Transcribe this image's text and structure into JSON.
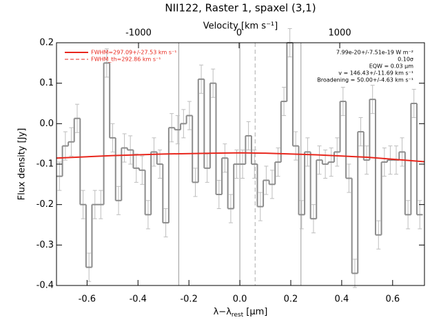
{
  "chart_data": {
    "type": "step",
    "title": "NII122, Raster 1, spaxel (3,1)",
    "x_label": [
      "λ−λ",
      "rest",
      " [μm]"
    ],
    "y_label": "Flux density [Jy]",
    "x2_label": "Velocity [km s⁻¹]",
    "xlim": [
      -0.72,
      0.725
    ],
    "ylim": [
      -0.4,
      0.2
    ],
    "x2lim": [
      -1815,
      1842
    ],
    "xticks": [
      -0.6,
      -0.4,
      -0.2,
      {
        "value": 0,
        "label": "0.0"
      },
      0.2,
      0.4,
      0.6
    ],
    "yticks": [
      -0.4,
      -0.3,
      -0.2,
      -0.1,
      {
        "value": 0,
        "label": "0.0"
      },
      0.1,
      0.2
    ],
    "x2ticks": [
      -1000,
      0,
      1000
    ],
    "vlines": [
      -0.24,
      0,
      0.24
    ],
    "dashed_vline": 0.06,
    "series": [
      {
        "name": "spectrum",
        "color": "#8c8c8c",
        "error_color": "#bdbdbd",
        "yerr": 0.035,
        "x": [
          -0.7084,
          -0.6852,
          -0.662,
          -0.6388,
          -0.6156,
          -0.5924,
          -0.5692,
          -0.546,
          -0.5228,
          -0.4996,
          -0.4764,
          -0.4532,
          -0.43,
          -0.4068,
          -0.3836,
          -0.3604,
          -0.3372,
          -0.314,
          -0.2908,
          -0.2676,
          -0.2444,
          -0.2212,
          -0.198,
          -0.1748,
          -0.1516,
          -0.1284,
          -0.1052,
          -0.082,
          -0.0588,
          -0.0356,
          -0.0124,
          0.0108,
          0.034,
          0.0572,
          0.0804,
          0.1036,
          0.1268,
          0.15,
          0.1732,
          0.1964,
          0.2196,
          0.2428,
          0.266,
          0.2892,
          0.3124,
          0.3356,
          0.3588,
          0.382,
          0.4052,
          0.4284,
          0.4516,
          0.4748,
          0.498,
          0.5212,
          0.5444,
          0.5676,
          0.5908,
          0.614,
          0.6372,
          0.6604,
          0.6836,
          0.7068
        ],
        "values": [
          -0.13,
          -0.055,
          -0.045,
          0.013,
          -0.2,
          -0.355,
          -0.2,
          -0.2,
          0.15,
          -0.035,
          -0.19,
          -0.06,
          -0.065,
          -0.11,
          -0.115,
          -0.225,
          -0.07,
          -0.1,
          -0.245,
          -0.01,
          -0.015,
          0.0,
          0.02,
          -0.145,
          0.11,
          -0.11,
          0.1,
          -0.175,
          -0.085,
          -0.21,
          -0.1,
          -0.1,
          -0.03,
          -0.1,
          -0.205,
          -0.14,
          -0.15,
          -0.095,
          0.055,
          0.2,
          -0.055,
          -0.225,
          -0.07,
          -0.235,
          -0.09,
          -0.1,
          -0.095,
          -0.07,
          0.055,
          -0.135,
          -0.37,
          -0.02,
          -0.09,
          0.06,
          -0.275,
          -0.095,
          -0.09,
          -0.09,
          -0.07,
          -0.225,
          0.05,
          -0.225
        ]
      },
      {
        "name": "FWHM=297.09+/-27.53 km s⁻¹",
        "color": "#e8261c",
        "x": [
          -0.72,
          -0.5,
          -0.3,
          -0.1,
          0,
          0.1,
          0.3,
          0.5,
          0.725
        ],
        "values": [
          -0.085,
          -0.079,
          -0.075,
          -0.073,
          -0.072,
          -0.073,
          -0.077,
          -0.083,
          -0.094
        ]
      },
      {
        "name": "FWHM_th=292.86 km s⁻¹",
        "color": "#e8261c",
        "dash": true
      }
    ],
    "annotations": [
      "7.99e-20+/-7.51e-19 W m⁻²",
      "0.10σ",
      "EQW = 0.03 μm",
      "v = 146.43+/-11.69 km s⁻¹",
      "Broadening = 50.00+/-4.63 km s⁻¹"
    ]
  }
}
